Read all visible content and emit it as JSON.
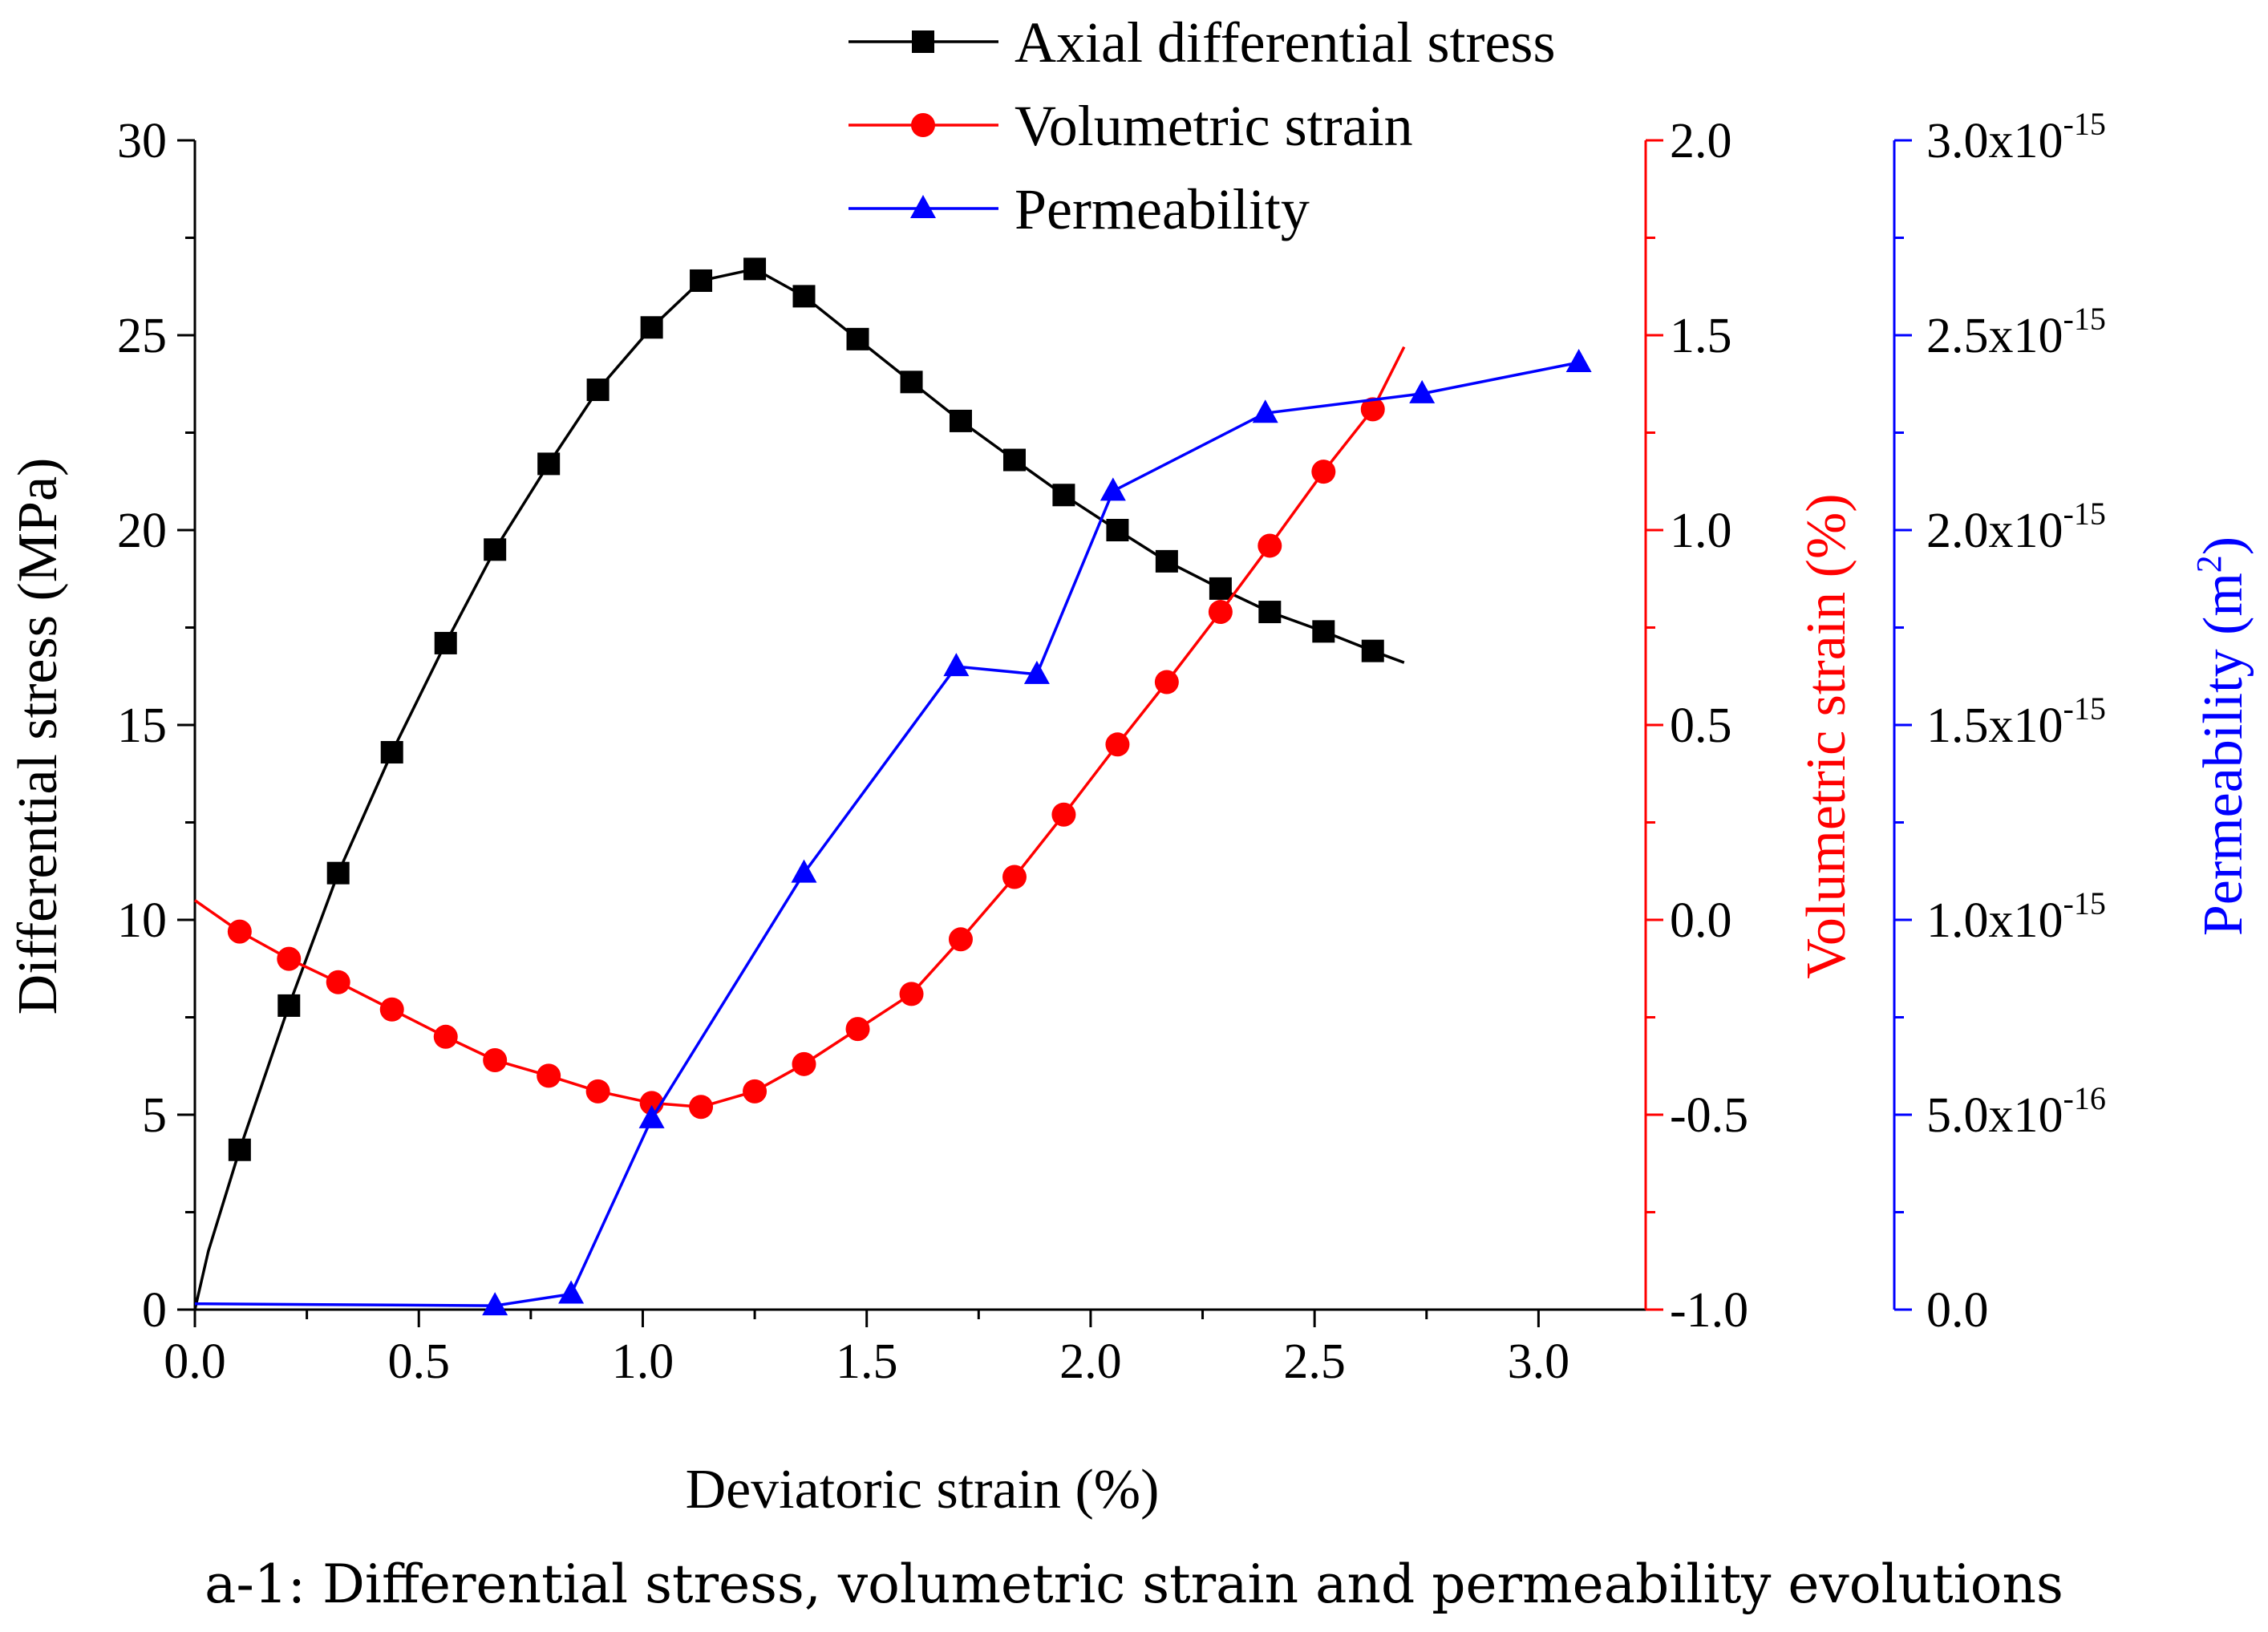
{
  "chart_data": {
    "type": "line",
    "caption": "a-1: Differential stress, volumetric strain and permeability evolutions",
    "xlabel": "Deviatoric strain (%)",
    "xlim": [
      0,
      3.25
    ],
    "xticks": [
      "0.0",
      "0.5",
      "1.0",
      "1.5",
      "2.0",
      "2.5",
      "3.0"
    ],
    "axes": {
      "stress": {
        "label": "Differential stress (MPa)",
        "ylim": [
          0,
          30
        ],
        "ticks": [
          "0",
          "5",
          "10",
          "15",
          "20",
          "25",
          "30"
        ],
        "color": "#000000"
      },
      "volumetric": {
        "label": "Volumetric strain (%)",
        "ylim": [
          -1.0,
          2.0
        ],
        "ticks": [
          "-1.0",
          "-0.5",
          "0.0",
          "0.5",
          "1.0",
          "1.5",
          "2.0"
        ],
        "color": "#ff0000"
      },
      "permeability": {
        "label_main": "Permeability (m",
        "label_sup": "2",
        "label_end": ")",
        "ylim": [
          0,
          3e-15
        ],
        "ticks": [
          {
            "mant": "0.0",
            "exp": ""
          },
          {
            "mant": "5.0x10",
            "exp": "-16"
          },
          {
            "mant": "1.0x10",
            "exp": "-15"
          },
          {
            "mant": "1.5x10",
            "exp": "-15"
          },
          {
            "mant": "2.0x10",
            "exp": "-15"
          },
          {
            "mant": "2.5x10",
            "exp": "-15"
          },
          {
            "mant": "3.0x10",
            "exp": "-15"
          }
        ],
        "color": "#0000ff"
      }
    },
    "series": [
      {
        "name": "Axial differential stress",
        "axis": "stress",
        "color": "#000000",
        "marker": "square",
        "x": [
          0.1,
          0.21,
          0.32,
          0.44,
          0.56,
          0.67,
          0.79,
          0.9,
          1.02,
          1.13,
          1.25,
          1.36,
          1.48,
          1.6,
          1.71,
          1.83,
          1.94,
          2.06,
          2.17,
          2.29,
          2.4,
          2.52,
          2.63
        ],
        "y": [
          4.1,
          7.8,
          11.2,
          14.3,
          17.1,
          19.5,
          21.7,
          23.6,
          25.2,
          26.4,
          26.7,
          26.0,
          24.9,
          23.8,
          22.8,
          21.8,
          20.9,
          20.0,
          19.2,
          18.5,
          17.9,
          17.4,
          16.9
        ],
        "curve_x": [
          0.0,
          0.03,
          0.1,
          0.21,
          0.32,
          0.44,
          0.56,
          0.67,
          0.79,
          0.9,
          1.02,
          1.13,
          1.25,
          1.36,
          1.48,
          1.6,
          1.71,
          1.83,
          1.94,
          2.06,
          2.17,
          2.29,
          2.4,
          2.52,
          2.63,
          2.7
        ],
        "curve_y": [
          0.0,
          1.5,
          4.1,
          7.8,
          11.2,
          14.3,
          17.1,
          19.5,
          21.7,
          23.6,
          25.2,
          26.4,
          26.7,
          26.0,
          24.9,
          23.8,
          22.8,
          21.8,
          20.9,
          20.0,
          19.2,
          18.5,
          17.9,
          17.4,
          16.9,
          16.6
        ]
      },
      {
        "name": "Volumetric strain",
        "axis": "volumetric",
        "color": "#ff0000",
        "marker": "circle",
        "x": [
          0.1,
          0.21,
          0.32,
          0.44,
          0.56,
          0.67,
          0.79,
          0.9,
          1.02,
          1.13,
          1.25,
          1.36,
          1.48,
          1.6,
          1.71,
          1.83,
          1.94,
          2.06,
          2.17,
          2.29,
          2.4,
          2.52,
          2.63
        ],
        "y": [
          -0.03,
          -0.1,
          -0.16,
          -0.23,
          -0.3,
          -0.36,
          -0.4,
          -0.44,
          -0.47,
          -0.48,
          -0.44,
          -0.37,
          -0.28,
          -0.19,
          -0.05,
          0.11,
          0.27,
          0.45,
          0.61,
          0.79,
          0.96,
          1.15,
          1.31
        ],
        "curve_x": [
          0.0,
          0.1,
          0.21,
          0.32,
          0.44,
          0.56,
          0.67,
          0.79,
          0.9,
          1.02,
          1.13,
          1.25,
          1.36,
          1.48,
          1.6,
          1.71,
          1.83,
          1.94,
          2.06,
          2.17,
          2.29,
          2.4,
          2.52,
          2.63,
          2.7
        ],
        "curve_y": [
          0.05,
          -0.03,
          -0.1,
          -0.16,
          -0.23,
          -0.3,
          -0.36,
          -0.4,
          -0.44,
          -0.47,
          -0.48,
          -0.44,
          -0.37,
          -0.28,
          -0.19,
          -0.05,
          0.11,
          0.27,
          0.45,
          0.61,
          0.79,
          0.96,
          1.15,
          1.31,
          1.47
        ]
      },
      {
        "name": "Permeability",
        "axis": "permeability",
        "color": "#0000ff",
        "marker": "triangle",
        "x": [
          0.67,
          0.84,
          1.02,
          1.36,
          1.7,
          1.88,
          2.05,
          2.39,
          2.74,
          3.09
        ],
        "y": [
          1e-17,
          4e-17,
          4.9e-16,
          1.12e-15,
          1.65e-15,
          1.63e-15,
          2.1e-15,
          2.3e-15,
          2.35e-15,
          2.43e-15
        ],
        "curve_x": [
          0.0,
          0.67,
          0.84,
          1.02,
          1.36,
          1.7,
          1.88,
          2.05,
          2.39,
          2.74,
          3.09
        ],
        "curve_y": [
          1.5e-17,
          1e-17,
          4e-17,
          4.9e-16,
          1.12e-15,
          1.65e-15,
          1.63e-15,
          2.1e-15,
          2.3e-15,
          2.35e-15,
          2.43e-15
        ]
      }
    ],
    "legend": {
      "position": "top-center",
      "entries": [
        "Axial differential stress",
        "Volumetric strain",
        "Permeability"
      ]
    }
  }
}
